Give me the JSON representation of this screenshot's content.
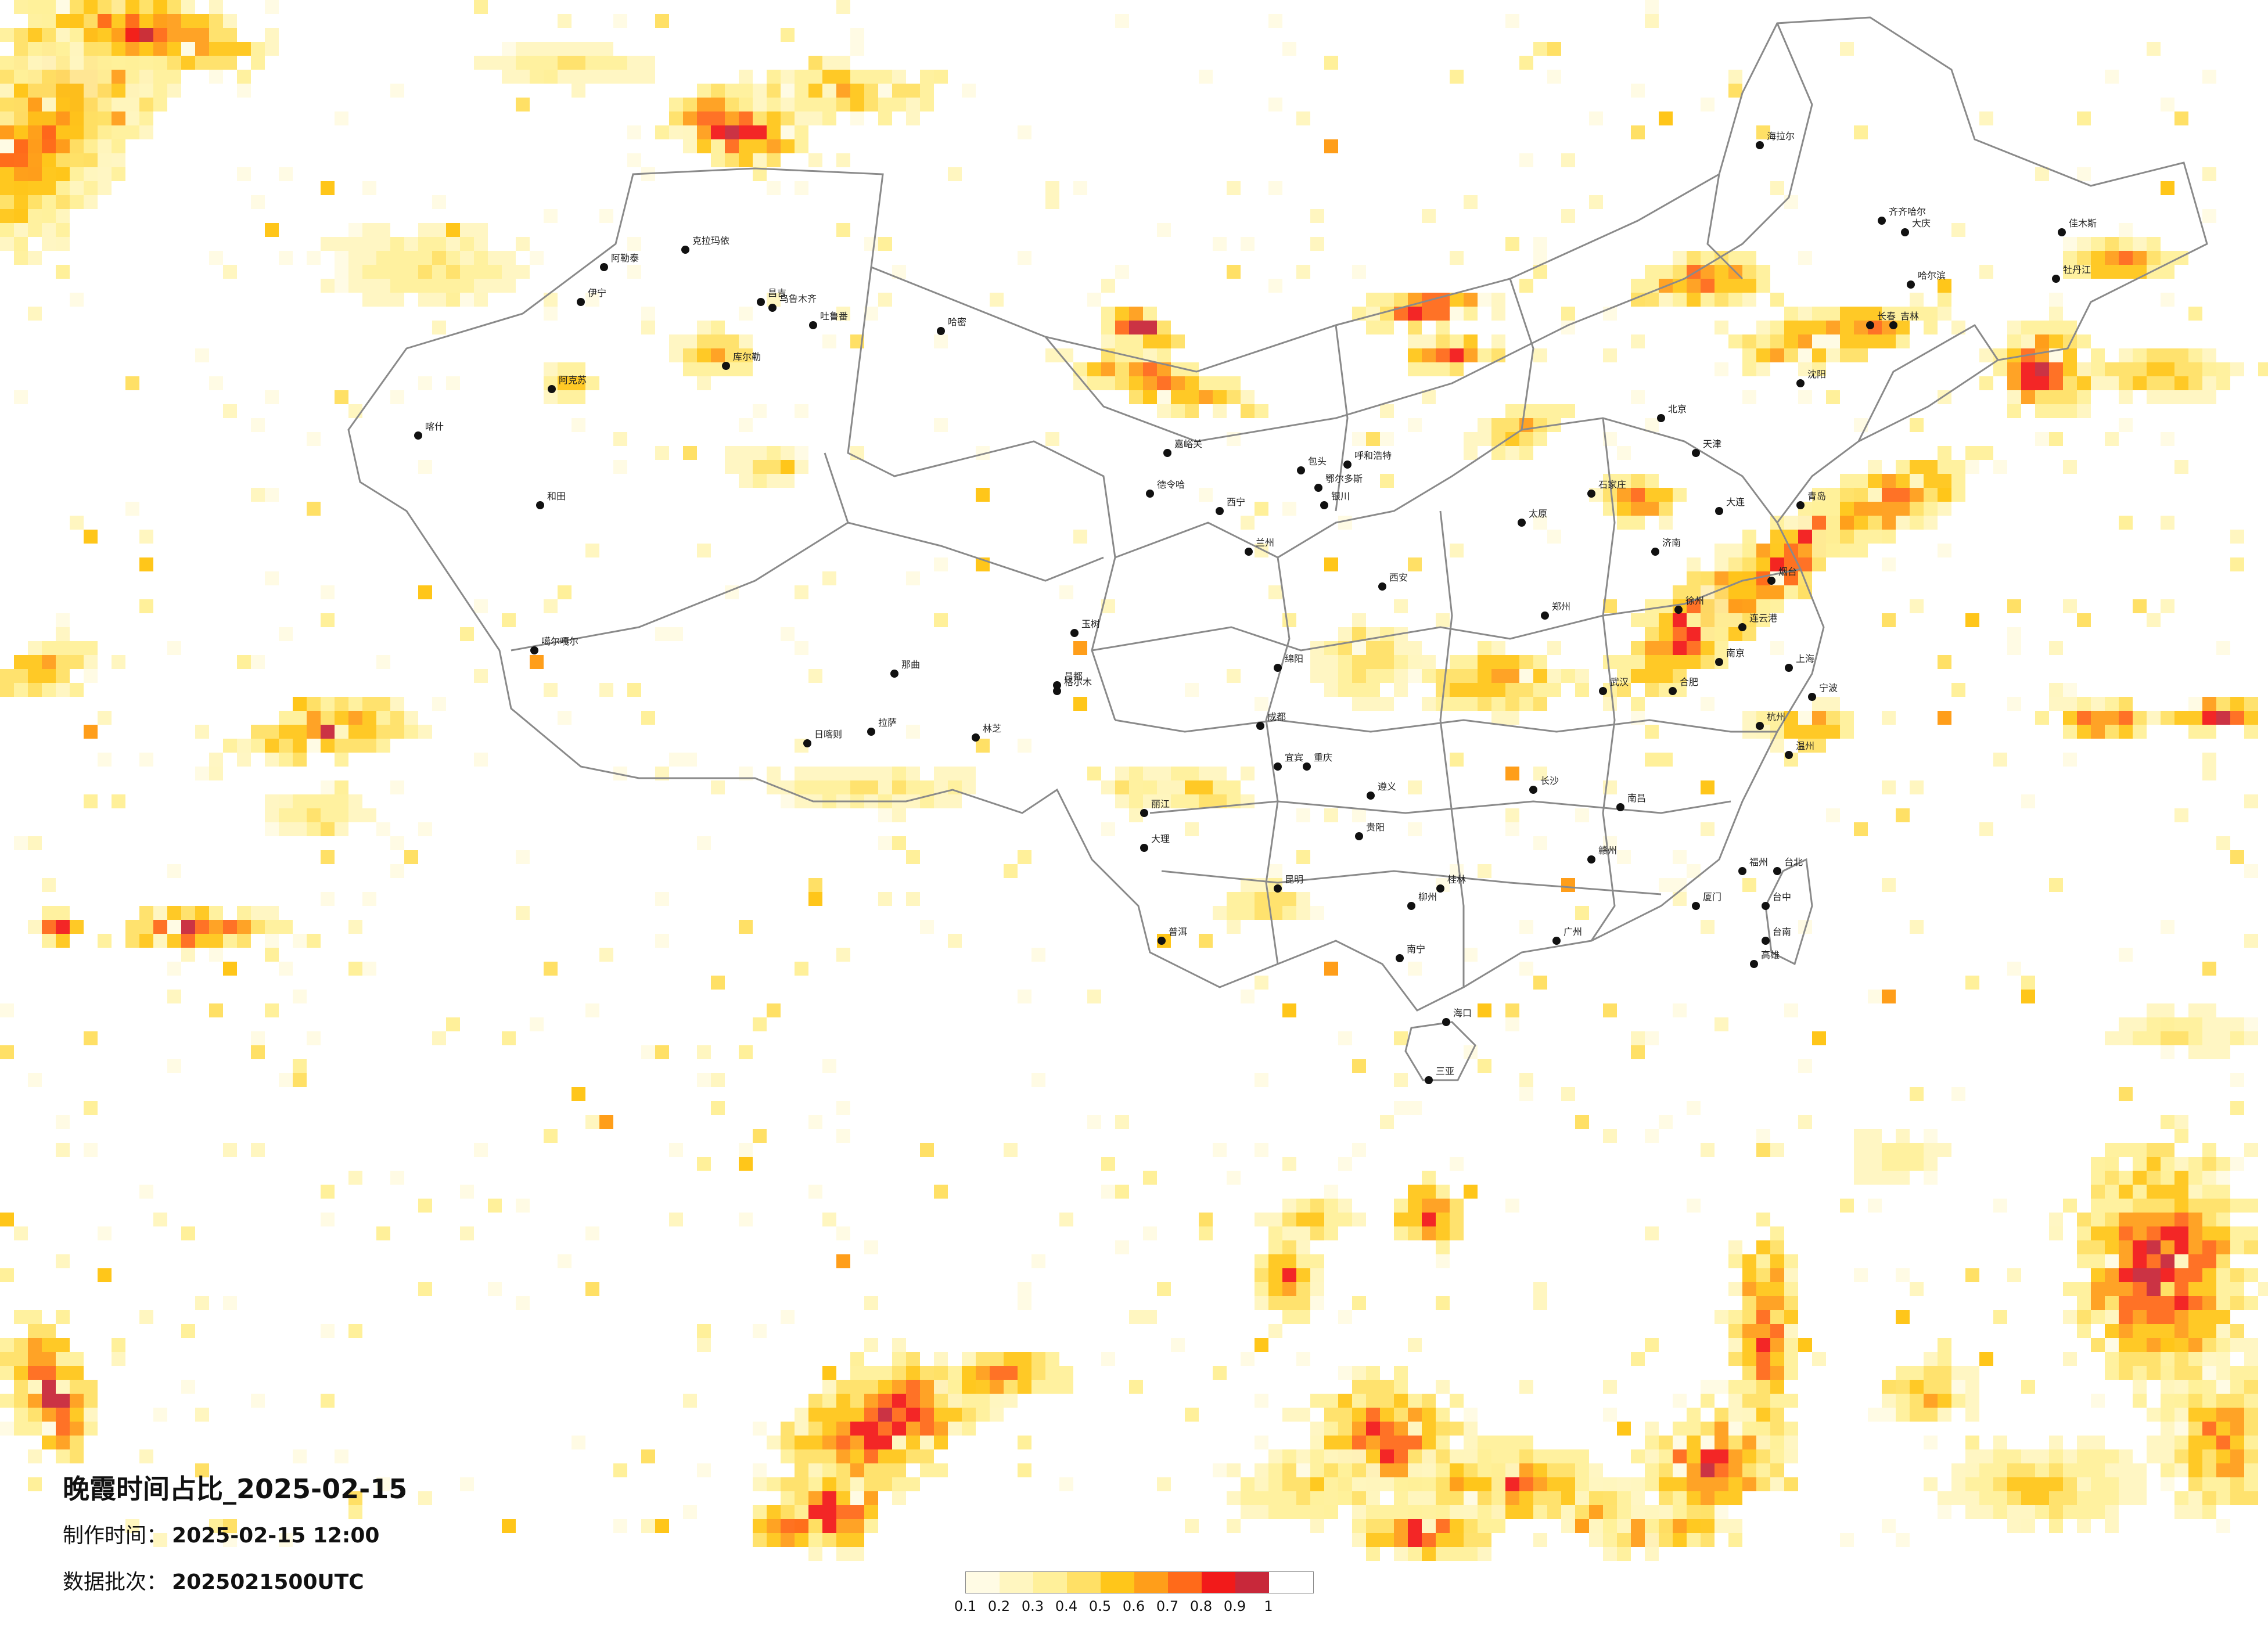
{
  "map": {
    "title": "晚霞时间占比_2025-02-15",
    "make_time_label": "制作时间：",
    "make_time_value": "2025-02-15 12:00",
    "batch_label": "数据批次：",
    "batch_value": "2025021500UTC",
    "legend": {
      "ticks": [
        "0.1",
        "0.2",
        "0.3",
        "0.4",
        "0.5",
        "0.6",
        "0.7",
        "0.8",
        "0.9",
        "1"
      ],
      "colors": [
        "#fffbe4",
        "#fff6c0",
        "#fff09a",
        "#ffe066",
        "#ffc61a",
        "#ff9e1a",
        "#ff6a1a",
        "#f21a1a",
        "#c8283a"
      ]
    },
    "colors": {
      "land_fill": "#ffffff",
      "border": "#8a8a8a",
      "city_dot": "#111111"
    }
  },
  "cities": [
    {
      "name": "克拉玛依"
    },
    {
      "name": "阿勒泰"
    },
    {
      "name": "伊宁"
    },
    {
      "name": "昌吉"
    },
    {
      "name": "乌鲁木齐"
    },
    {
      "name": "吐鲁番"
    },
    {
      "name": "哈密"
    },
    {
      "name": "库尔勒"
    },
    {
      "name": "阿克苏"
    },
    {
      "name": "喀什"
    },
    {
      "name": "和田"
    },
    {
      "name": "噶尔嘎尔"
    },
    {
      "name": "那曲"
    },
    {
      "name": "拉萨"
    },
    {
      "name": "日喀则"
    },
    {
      "name": "林芝"
    },
    {
      "name": "昌都"
    },
    {
      "name": "玉树"
    },
    {
      "name": "格尔木"
    },
    {
      "name": "德令哈"
    },
    {
      "name": "嘉峪关"
    },
    {
      "name": "西宁"
    },
    {
      "name": "兰州"
    },
    {
      "name": "银川"
    },
    {
      "name": "呼和浩特"
    },
    {
      "name": "包头"
    },
    {
      "name": "鄂尔多斯"
    },
    {
      "name": "北京"
    },
    {
      "name": "天津"
    },
    {
      "name": "石家庄"
    },
    {
      "name": "太原"
    },
    {
      "name": "济南"
    },
    {
      "name": "郑州"
    },
    {
      "name": "西安"
    },
    {
      "name": "成都"
    },
    {
      "name": "重庆"
    },
    {
      "name": "贵阳"
    },
    {
      "name": "昆明"
    },
    {
      "name": "南宁"
    },
    {
      "name": "广州"
    },
    {
      "name": "长沙"
    },
    {
      "name": "武汉"
    },
    {
      "name": "南昌"
    },
    {
      "name": "福州"
    },
    {
      "name": "杭州"
    },
    {
      "name": "上海"
    },
    {
      "name": "南京"
    },
    {
      "name": "合肥"
    },
    {
      "name": "沈阳"
    },
    {
      "name": "长春"
    },
    {
      "name": "哈尔滨"
    },
    {
      "name": "齐齐哈尔"
    },
    {
      "name": "海拉尔"
    },
    {
      "name": "大庆"
    },
    {
      "name": "佳木斯"
    },
    {
      "name": "牡丹江"
    },
    {
      "name": "吉林"
    },
    {
      "name": "大连"
    },
    {
      "name": "青岛"
    },
    {
      "name": "海口"
    },
    {
      "name": "三亚"
    },
    {
      "name": "台北"
    },
    {
      "name": "台中"
    },
    {
      "name": "台南"
    },
    {
      "name": "高雄"
    },
    {
      "name": "大理"
    },
    {
      "name": "丽江"
    },
    {
      "name": "普洱"
    },
    {
      "name": "宜宾"
    },
    {
      "name": "绵阳"
    },
    {
      "name": "遵义"
    },
    {
      "name": "桂林"
    },
    {
      "name": "柳州"
    },
    {
      "name": "赣州"
    },
    {
      "name": "厦门"
    },
    {
      "name": "温州"
    },
    {
      "name": "宁波"
    },
    {
      "name": "连云港"
    },
    {
      "name": "徐州"
    },
    {
      "name": "烟台"
    }
  ]
}
